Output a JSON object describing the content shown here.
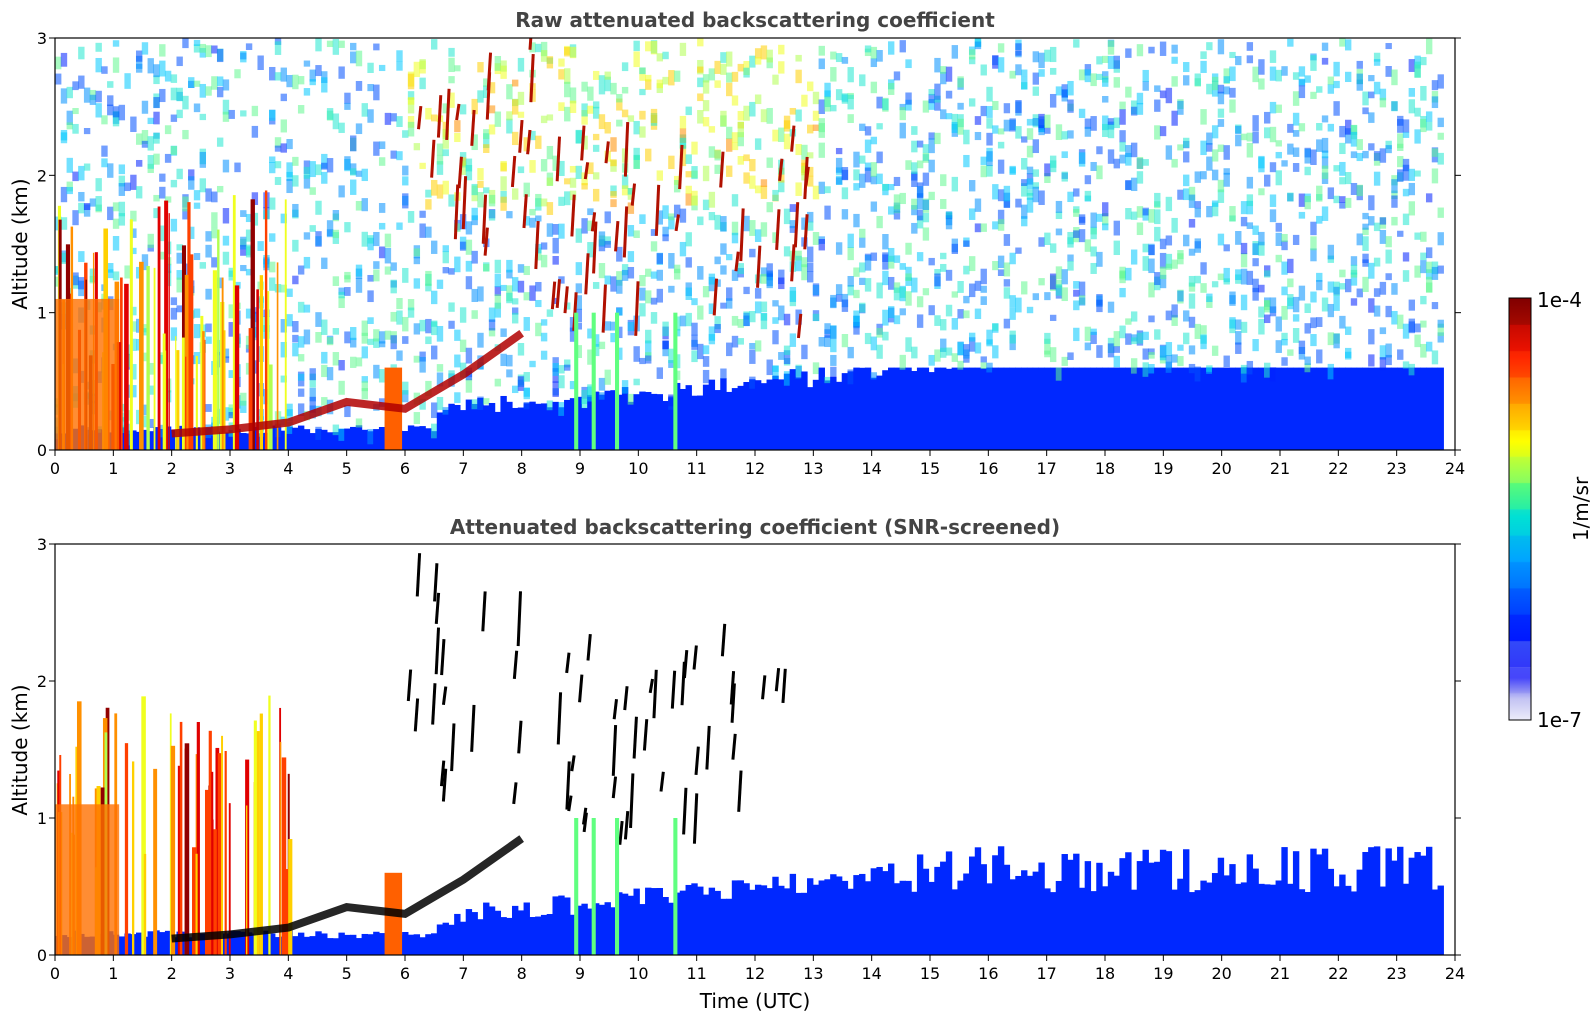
{
  "chart_data": [
    {
      "type": "heatmap",
      "title": "Raw attenuated backscattering coefficient",
      "xlabel": "",
      "ylabel": "Altitude (km)",
      "xlim": [
        0,
        24
      ],
      "ylim": [
        0,
        3
      ],
      "xticks": [
        "0",
        "1",
        "2",
        "3",
        "4",
        "5",
        "6",
        "7",
        "8",
        "9",
        "10",
        "11",
        "12",
        "13",
        "14",
        "15",
        "16",
        "17",
        "18",
        "19",
        "20",
        "21",
        "22",
        "23",
        "24"
      ],
      "yticks": [
        "0",
        "1",
        "2",
        "3"
      ],
      "color_scale": {
        "scale": "log",
        "min_label": "1e-7",
        "max_label": "1e-4",
        "units": "1/m/sr"
      },
      "features": [
        {
          "name": "cloud_layers",
          "x_range": [
            0,
            4
          ],
          "y_range": [
            0.1,
            1.9
          ]
        },
        {
          "name": "boundary_layer_top",
          "x": [
            2,
            3,
            4,
            5,
            6,
            7,
            8
          ],
          "y": [
            0.12,
            0.15,
            0.2,
            0.35,
            0.3,
            0.55,
            0.85
          ]
        },
        {
          "name": "elevated_streaks",
          "x_range": [
            6,
            13
          ],
          "y_range": [
            0.8,
            3
          ]
        },
        {
          "name": "aerosol_layer",
          "x_range": [
            7,
            24
          ],
          "y_range": [
            0,
            0.6
          ]
        }
      ]
    },
    {
      "type": "heatmap",
      "title": "Attenuated backscattering coefficient (SNR-screened)",
      "xlabel": "Time (UTC)",
      "ylabel": "Altitude (km)",
      "xlim": [
        0,
        24
      ],
      "ylim": [
        0,
        3
      ],
      "xticks": [
        "0",
        "1",
        "2",
        "3",
        "4",
        "5",
        "6",
        "7",
        "8",
        "9",
        "10",
        "11",
        "12",
        "13",
        "14",
        "15",
        "16",
        "17",
        "18",
        "19",
        "20",
        "21",
        "22",
        "23",
        "24"
      ],
      "yticks": [
        "0",
        "1",
        "2",
        "3"
      ],
      "color_scale": {
        "scale": "log",
        "min_label": "1e-7",
        "max_label": "1e-4",
        "units": "1/m/sr"
      },
      "features": [
        {
          "name": "cloud_layers",
          "x_range": [
            0,
            4
          ],
          "y_range": [
            0.1,
            1.9
          ]
        },
        {
          "name": "boundary_layer_top",
          "x": [
            2,
            3,
            4,
            5,
            6,
            7,
            8
          ],
          "y": [
            0.12,
            0.15,
            0.2,
            0.35,
            0.3,
            0.55,
            0.85
          ]
        },
        {
          "name": "elevated_streaks",
          "x_range": [
            6,
            13
          ],
          "y_range": [
            0.8,
            3
          ]
        },
        {
          "name": "aerosol_layer",
          "x_range": [
            7,
            24
          ],
          "y_range": [
            0,
            0.85
          ]
        }
      ]
    }
  ],
  "colorbar": {
    "top_label": "1e-4",
    "bottom_label": "1e-7",
    "units_label": "1/m/sr",
    "colors": [
      "#e8e8f8",
      "#c8c8f0",
      "#9090ee",
      "#0000ff",
      "#0040ff",
      "#0080ff",
      "#00b0ff",
      "#00e0e0",
      "#40ff80",
      "#c0ff40",
      "#ffff00",
      "#ffc000",
      "#ff8000",
      "#ff3000",
      "#e00000",
      "#800000"
    ]
  }
}
